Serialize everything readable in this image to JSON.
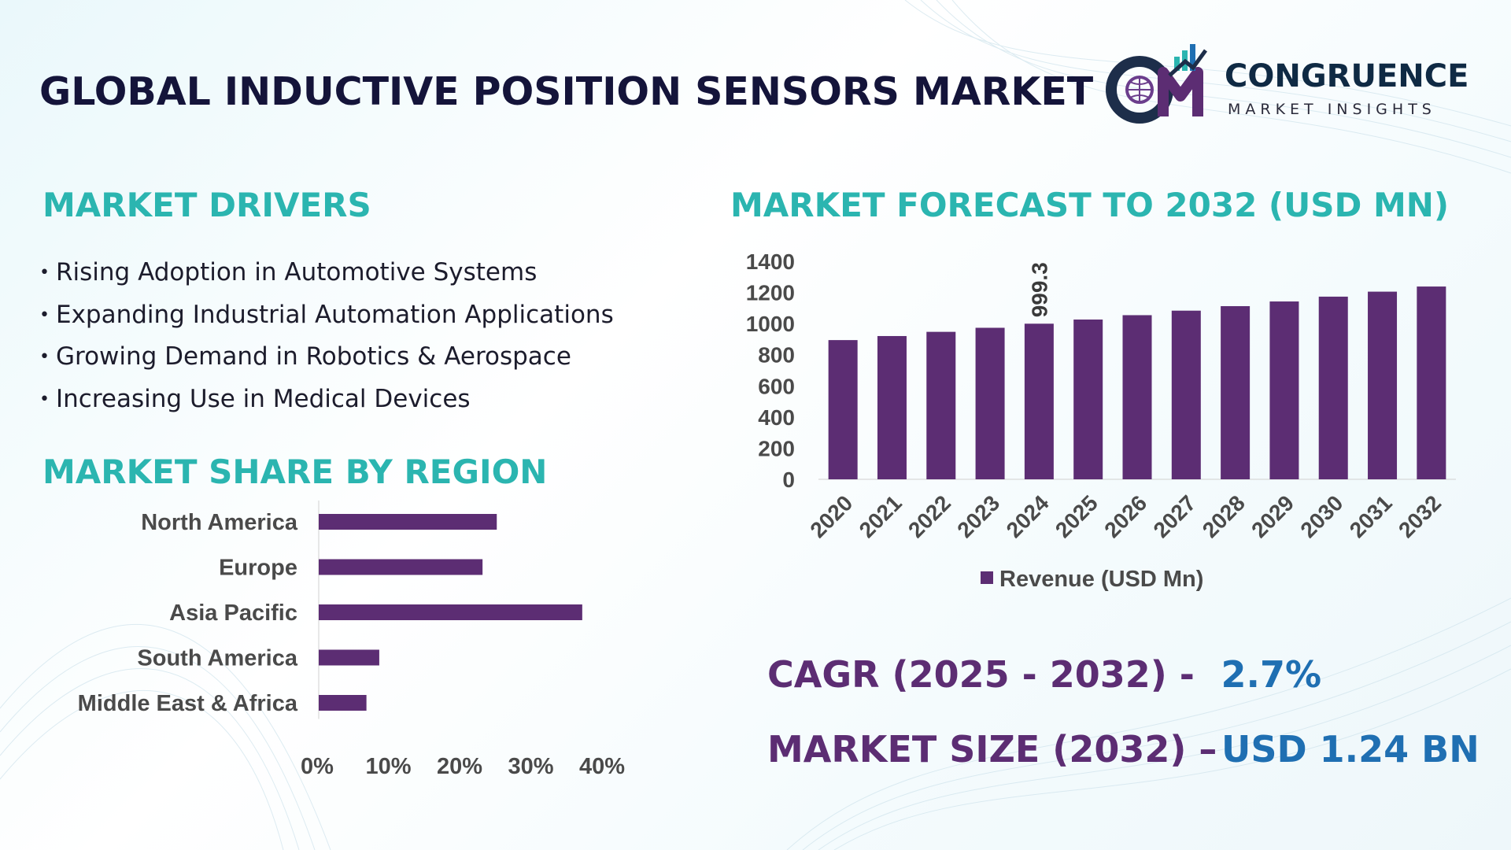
{
  "header": {
    "title": "GLOBAL INDUCTIVE POSITION SENSORS MARKET",
    "logo_name": "CONGRUENCE",
    "logo_tagline": "MARKET INSIGHTS"
  },
  "drivers": {
    "heading": "MARKET DRIVERS",
    "items": [
      "Rising Adoption in Automotive Systems",
      "Expanding Industrial Automation Applications",
      "Growing Demand in Robotics & Aerospace",
      "Increasing Use in Medical Devices"
    ]
  },
  "region": {
    "heading": "MARKET SHARE BY REGION"
  },
  "forecast": {
    "heading": "MARKET FORECAST TO 2032 (USD MN)"
  },
  "stats": {
    "cagr_label": "CAGR (2025 - 2032) -",
    "cagr_value": "2.7%",
    "size_label": "MARKET SIZE (2032) –",
    "size_value": "USD 1.24 BN"
  },
  "colors": {
    "bar": "#5c2d73",
    "heading": "#2bb5b0",
    "title": "#14143a",
    "stat_label": "#5c2d73",
    "stat_value": "#1f6fb2"
  },
  "chart_data": [
    {
      "type": "bar",
      "orientation": "vertical",
      "title": "MARKET FORECAST TO 2032 (USD MN)",
      "categories": [
        "2020",
        "2021",
        "2022",
        "2023",
        "2024",
        "2025",
        "2026",
        "2027",
        "2028",
        "2029",
        "2030",
        "2031",
        "2032"
      ],
      "series": [
        {
          "name": "Revenue (USD Mn)",
          "values": [
            894,
            920,
            947,
            973,
            999.3,
            1026,
            1054,
            1083,
            1112,
            1142,
            1173,
            1205,
            1238
          ]
        }
      ],
      "data_labels": [
        {
          "index": 4,
          "text": "999.3"
        }
      ],
      "ylim": [
        0,
        1400
      ],
      "yticks": [
        0,
        200,
        400,
        600,
        800,
        1000,
        1200,
        1400
      ],
      "legend": "bottom",
      "grid": false
    },
    {
      "type": "bar",
      "orientation": "horizontal",
      "title": "MARKET SHARE BY REGION",
      "categories": [
        "North America",
        "Europe",
        "Asia Pacific",
        "South America",
        "Middle East & Africa"
      ],
      "values": [
        25,
        23,
        37,
        8.5,
        6.7
      ],
      "xlim": [
        0,
        40
      ],
      "xticks": [
        "0%",
        "10%",
        "20%",
        "30%",
        "40%"
      ],
      "grid": false
    }
  ]
}
